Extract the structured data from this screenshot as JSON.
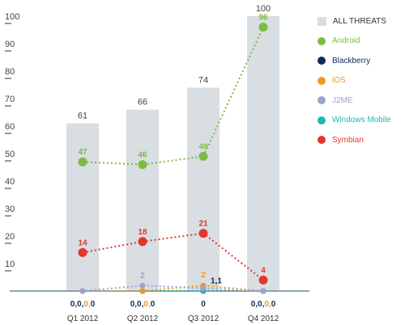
{
  "chart_data": {
    "type": "bar",
    "title": "",
    "xlabel": "",
    "ylabel": "",
    "categories": [
      "Q1 2012",
      "Q2 2012",
      "Q3 2012",
      "Q4 2012"
    ],
    "ylim": [
      0,
      100
    ],
    "yticks": [
      10,
      20,
      30,
      40,
      50,
      60,
      70,
      80,
      90,
      100
    ],
    "grid": false,
    "legend_placement": "top-right",
    "bars": {
      "name": "ALL THREATS",
      "values": [
        61,
        66,
        74,
        100
      ],
      "labels": [
        "61",
        "66",
        "74",
        "100"
      ],
      "color": "#d9dee2"
    },
    "series": [
      {
        "name": "Android",
        "values": [
          47,
          46,
          49,
          96
        ],
        "color": "#7dbb42",
        "label_color": "#7dbb42"
      },
      {
        "name": "Blackberry",
        "values": [
          0,
          0,
          0,
          0
        ],
        "color": "#0e2c5a",
        "label_color": "#0e2c5a"
      },
      {
        "name": "iOS",
        "values": [
          0,
          0,
          2,
          0
        ],
        "color": "#f29a1f",
        "label_color": "#f29a1f"
      },
      {
        "name": "J2ME",
        "values": [
          0,
          2,
          1,
          0
        ],
        "color": "#9aa4d0",
        "label_color": "#9aa4d0"
      },
      {
        "name": "Windows Mobile",
        "values": [
          0,
          0,
          0,
          0
        ],
        "color": "#1fb6b6",
        "label_color": "#1fb6b6"
      },
      {
        "name": "Symbian",
        "values": [
          14,
          18,
          21,
          4
        ],
        "color": "#e3362c",
        "label_color": "#e3362c"
      }
    ],
    "point_labels": [
      {
        "series": "Android",
        "category": "Q1 2012",
        "text": "47"
      },
      {
        "series": "Android",
        "category": "Q2 2012",
        "text": "46"
      },
      {
        "series": "Android",
        "category": "Q3 2012",
        "text": "49"
      },
      {
        "series": "Android",
        "category": "Q4 2012",
        "text": "96"
      },
      {
        "series": "Symbian",
        "category": "Q1 2012",
        "text": "14"
      },
      {
        "series": "Symbian",
        "category": "Q2 2012",
        "text": "18"
      },
      {
        "series": "Symbian",
        "category": "Q3 2012",
        "text": "21"
      },
      {
        "series": "Symbian",
        "category": "Q4 2012",
        "text": "4"
      },
      {
        "series": "J2ME",
        "category": "Q2 2012",
        "text": "2"
      },
      {
        "series": "iOS",
        "category": "Q3 2012",
        "text": "2"
      },
      {
        "series": "J2ME",
        "category": "Q3 2012",
        "text": "1,1"
      }
    ],
    "category_value_labels": [
      {
        "category": "Q1 2012",
        "text": "0,0,0,0"
      },
      {
        "category": "Q2 2012",
        "text": "0,0,0,0"
      },
      {
        "category": "Q3 2012",
        "text": "0"
      },
      {
        "category": "Q4 2012",
        "text": "0,0,0,0"
      }
    ]
  }
}
